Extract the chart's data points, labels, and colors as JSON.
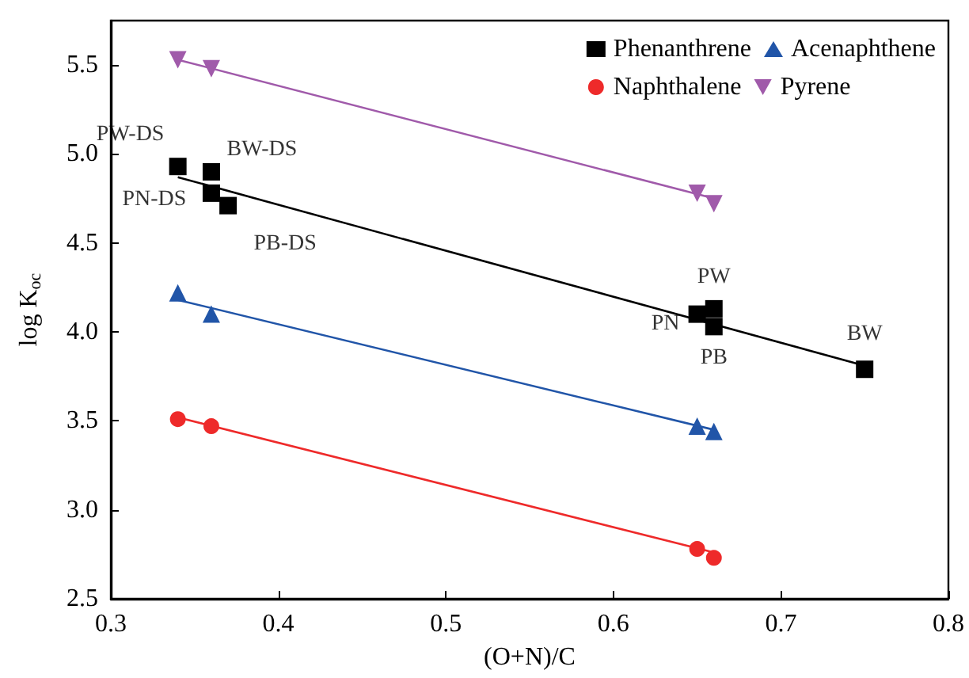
{
  "chart_data": {
    "type": "scatter",
    "xlabel": "(O+N)/C",
    "ylabel": "log K$_{oc}$",
    "xlim": [
      0.3,
      0.8
    ],
    "xticks": [
      0.3,
      0.4,
      0.5,
      0.6,
      0.7,
      0.8
    ],
    "ylim": [
      2.5,
      5.75
    ],
    "yticks": [
      2.5,
      {
        "value": 3,
        "label": "3.0"
      },
      3.5,
      {
        "value": 4,
        "label": "4.0"
      },
      4.5,
      {
        "value": 5,
        "label": "5.0"
      },
      5.5
    ],
    "grid": false,
    "legend": "top right",
    "series": [
      {
        "name": "Phenanthrene",
        "color": "#000000",
        "marker": "square",
        "x": [
          0.34,
          0.36,
          0.36,
          0.37,
          0.65,
          0.66,
          0.66,
          0.75
        ],
        "values": [
          4.93,
          4.9,
          4.78,
          4.71,
          4.1,
          4.13,
          4.03,
          3.79
        ]
      },
      {
        "name": "Acenaphthene",
        "color": "#2155a8",
        "marker": "triangle",
        "x": [
          0.34,
          0.36,
          0.65,
          0.66
        ],
        "values": [
          4.22,
          4.1,
          3.47,
          3.44
        ]
      },
      {
        "name": "Naphthalene",
        "color": "#ee2a2a",
        "marker": "circle",
        "x": [
          0.34,
          0.36,
          0.65,
          0.66
        ],
        "values": [
          3.51,
          3.47,
          2.78,
          2.73
        ]
      },
      {
        "name": "Pyrene",
        "color": "#a05aaa",
        "marker": "triangle-down",
        "x": [
          0.34,
          0.36,
          0.65,
          0.66
        ],
        "values": [
          5.53,
          5.48,
          4.78,
          4.72
        ]
      },
      {
        "type": "line",
        "color": "#000000",
        "marker": "none",
        "x": [
          0.34,
          0.75
        ],
        "values": [
          4.87,
          3.81
        ]
      },
      {
        "type": "line",
        "color": "#2155a8",
        "marker": "none",
        "x": [
          0.34,
          0.66
        ],
        "values": [
          4.18,
          3.45
        ]
      },
      {
        "type": "line",
        "color": "#ee2a2a",
        "marker": "none",
        "x": [
          0.34,
          0.66
        ],
        "values": [
          3.52,
          2.76
        ]
      },
      {
        "type": "line",
        "color": "#a05aaa",
        "marker": "none",
        "x": [
          0.34,
          0.66
        ],
        "values": [
          5.53,
          4.75
        ]
      }
    ],
    "annotations": [
      {
        "text": "PW-DS",
        "x": 0.34,
        "y": 4.93
      },
      {
        "text": "BW-DS",
        "x": 0.36,
        "y": 4.9
      },
      {
        "text": "PN-DS",
        "x": 0.36,
        "y": 4.78
      },
      {
        "text": "PB-DS",
        "x": 0.37,
        "y": 4.71
      },
      {
        "text": "PN",
        "x": 0.65,
        "y": 4.1
      },
      {
        "text": "PW",
        "x": 0.66,
        "y": 4.13
      },
      {
        "text": "PB",
        "x": 0.66,
        "y": 4.03
      },
      {
        "text": "BW",
        "x": 0.75,
        "y": 3.79
      }
    ]
  }
}
